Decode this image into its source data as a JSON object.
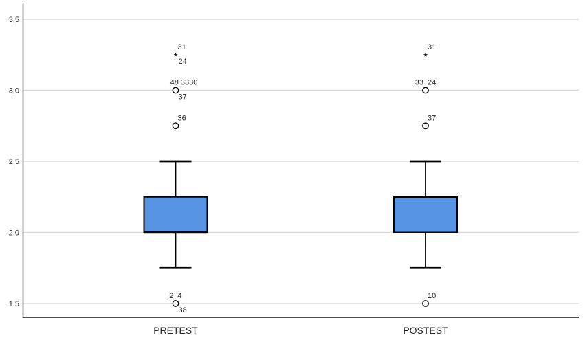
{
  "page": {
    "background": "#ffffff",
    "description": "SPSS-style clustered boxplot output"
  },
  "chart_data": {
    "type": "boxplot",
    "title": "",
    "xlabel": "",
    "ylabel": "",
    "categories": [
      "PRETEST",
      "POSTEST"
    ],
    "y_axis": {
      "ticks": [
        3.5,
        3.0,
        2.5,
        2.0,
        1.5
      ],
      "tick_labels": [
        "3,5",
        "3,0",
        "2,5",
        "2,0",
        "1,5"
      ],
      "decimal_separator": ",",
      "range_shown": [
        1.35,
        3.62
      ],
      "grid": "horizontal-light-gray"
    },
    "legend": "none",
    "series": [
      {
        "category": "PRETEST",
        "q1": 2.0,
        "median": 2.0,
        "q3": 2.25,
        "whisker_low": 1.75,
        "whisker_high": 2.5,
        "outliers": [
          {
            "value": 3.25,
            "marker": "extreme-star",
            "labels": [
              {
                "text": "31",
                "pos": "above-right"
              },
              {
                "text": "24",
                "pos": "below-right"
              }
            ]
          },
          {
            "value": 3.0,
            "marker": "circle",
            "labels": [
              {
                "text": "48 3330",
                "pos": "above-center"
              },
              {
                "text": "37",
                "pos": "below-right"
              }
            ]
          },
          {
            "value": 2.75,
            "marker": "circle",
            "labels": [
              {
                "text": "36",
                "pos": "above-right"
              }
            ]
          },
          {
            "value": 1.5,
            "marker": "circle",
            "labels": [
              {
                "text": "2",
                "pos": "above-left"
              },
              {
                "text": "4",
                "pos": "above-right"
              },
              {
                "text": "38",
                "pos": "below-right"
              }
            ]
          }
        ]
      },
      {
        "category": "POSTEST",
        "q1": 2.0,
        "median": 2.25,
        "q3": 2.25,
        "whisker_low": 1.75,
        "whisker_high": 2.5,
        "outliers": [
          {
            "value": 3.25,
            "marker": "extreme-star",
            "labels": [
              {
                "text": "31",
                "pos": "above-right"
              }
            ]
          },
          {
            "value": 3.0,
            "marker": "circle",
            "labels": [
              {
                "text": "33",
                "pos": "above-left"
              },
              {
                "text": "24",
                "pos": "above-right"
              }
            ]
          },
          {
            "value": 2.75,
            "marker": "circle",
            "labels": [
              {
                "text": "37",
                "pos": "above-right"
              }
            ]
          },
          {
            "value": 1.5,
            "marker": "circle",
            "labels": [
              {
                "text": "10",
                "pos": "above-right"
              }
            ]
          }
        ]
      }
    ],
    "colors": {
      "box_fill": "#5794E4",
      "box_border": "#000000",
      "median": "#000000",
      "whisker": "#000000",
      "gridline": "#D8D8D8",
      "axis_left": "#6E6E6E",
      "axis_bottom": "#333333",
      "text": "#262626",
      "outlier_fill": "#FFFFFF",
      "outlier_stroke": "#000000"
    }
  }
}
